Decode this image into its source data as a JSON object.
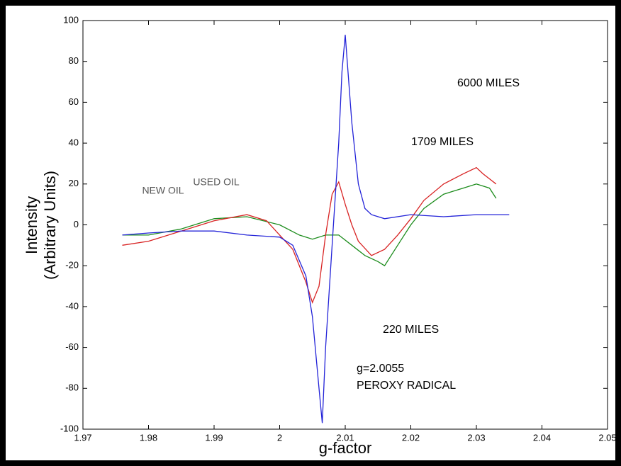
{
  "chart_data": {
    "type": "line",
    "xlabel": "g-factor",
    "ylabel": [
      "Intensity",
      "(Arbitrary Units)"
    ],
    "xlim": [
      1.97,
      2.05
    ],
    "xticks": [
      1.97,
      1.98,
      1.99,
      2,
      2.01,
      2.02,
      2.03,
      2.04,
      2.05
    ],
    "ylim": [
      -100,
      100
    ],
    "yticks": [
      -100,
      -80,
      -60,
      -40,
      -20,
      0,
      20,
      40,
      60,
      80,
      100
    ],
    "grid": false,
    "series": [
      {
        "name": "6000 MILES",
        "color": "#2323d8",
        "x": [
          1.976,
          1.98,
          1.985,
          1.99,
          1.995,
          2.0,
          2.002,
          2.004,
          2.005,
          2.006,
          2.0065,
          2.007,
          2.008,
          2.009,
          2.0095,
          2.01,
          2.011,
          2.012,
          2.013,
          2.014,
          2.016,
          2.02,
          2.025,
          2.03,
          2.035
        ],
        "values": [
          -5,
          -4,
          -3,
          -3,
          -5,
          -6,
          -10,
          -25,
          -45,
          -80,
          -97,
          -60,
          -10,
          40,
          75,
          93,
          50,
          20,
          8,
          5,
          3,
          5,
          4,
          5,
          5
        ]
      },
      {
        "name": "1709 MILES",
        "color": "#d82323",
        "x": [
          1.976,
          1.98,
          1.985,
          1.99,
          1.995,
          1.998,
          2.0,
          2.002,
          2.004,
          2.005,
          2.006,
          2.007,
          2.008,
          2.009,
          2.01,
          2.011,
          2.012,
          2.014,
          2.016,
          2.018,
          2.02,
          2.022,
          2.025,
          2.028,
          2.03,
          2.031,
          2.033
        ],
        "values": [
          -10,
          -8,
          -3,
          2,
          5,
          2,
          -5,
          -12,
          -28,
          -38,
          -30,
          -5,
          15,
          21,
          10,
          0,
          -8,
          -15,
          -12,
          -5,
          3,
          12,
          20,
          25,
          28,
          25,
          20
        ]
      },
      {
        "name": "220 MILES",
        "color": "#1c8c1c",
        "x": [
          1.976,
          1.98,
          1.985,
          1.99,
          1.995,
          2.0,
          2.003,
          2.005,
          2.007,
          2.009,
          2.011,
          2.013,
          2.015,
          2.016,
          2.018,
          2.02,
          2.022,
          2.025,
          2.028,
          2.03,
          2.032,
          2.033
        ],
        "values": [
          -5,
          -5,
          -2,
          3,
          4,
          0,
          -5,
          -7,
          -5,
          -5,
          -10,
          -15,
          -18,
          -20,
          -10,
          0,
          8,
          15,
          18,
          20,
          18,
          13
        ]
      }
    ],
    "annotations": [
      "g=2.0055",
      "PEROXY RADICAL"
    ],
    "inset_labels": [
      "NEW OIL",
      "USED OIL"
    ]
  }
}
